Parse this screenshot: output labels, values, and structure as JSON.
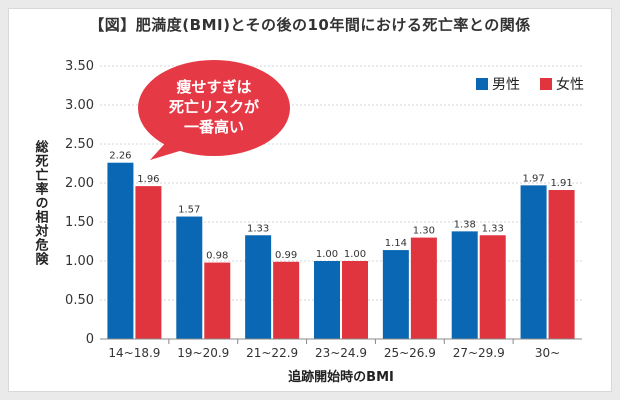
{
  "header": {
    "title": "【図】肥満度(BMI)とその後の10年間における死亡率との関係"
  },
  "callout": {
    "lines": [
      "痩せすぎは",
      "死亡リスクが",
      "一番高い"
    ],
    "color": "#e63946"
  },
  "chart_data": {
    "type": "bar",
    "title": "【図】肥満度(BMI)とその後の10年間における死亡率との関係",
    "xlabel": "追跡開始時のBMI",
    "ylabel": "総死亡率の相対危険",
    "categories": [
      "14~18.9",
      "19~20.9",
      "21~22.9",
      "23~24.9",
      "25~26.9",
      "27~29.9",
      "30~"
    ],
    "series": [
      {
        "name": "男性",
        "color": "#0a67b3",
        "values": [
          2.26,
          1.57,
          1.33,
          1.0,
          1.14,
          1.38,
          1.97
        ]
      },
      {
        "name": "女性",
        "color": "#e0343f",
        "values": [
          1.96,
          0.98,
          0.99,
          1.0,
          1.3,
          1.33,
          1.91
        ]
      }
    ],
    "yticks": [
      "0",
      "0.50",
      "1.00",
      "1.50",
      "2.00",
      "2.50",
      "3.00",
      "3.50"
    ],
    "ylim": [
      0,
      3.5
    ],
    "grid": true,
    "legend": "top-right"
  }
}
